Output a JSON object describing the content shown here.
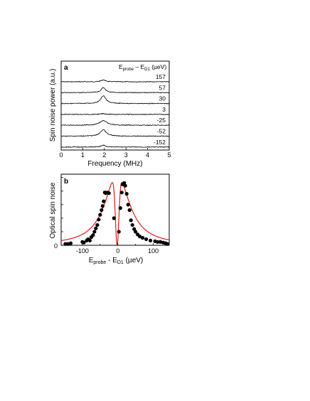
{
  "chart_data": [
    {
      "panel": "a",
      "type": "line",
      "xlabel": "Frequency (MHz)",
      "ylabel": "Spin noise power (a.u.)",
      "xlim": [
        0,
        5
      ],
      "xticks": [
        "0",
        "1",
        "2",
        "3",
        "4",
        "5"
      ],
      "legend_title": {
        "main": "E",
        "sub1": "probe",
        "mid": " – E",
        "sub2": "D1",
        "tail": " (µeV)"
      },
      "peak_center_mhz": 1.95,
      "series": [
        {
          "name": "157",
          "peak_height": 0.2,
          "peak_width_mhz": 0.12
        },
        {
          "name": "57",
          "peak_height": 0.55,
          "peak_width_mhz": 0.12
        },
        {
          "name": "30",
          "peak_height": 0.85,
          "peak_width_mhz": 0.14
        },
        {
          "name": "3",
          "peak_height": 0.08,
          "peak_width_mhz": 0.15
        },
        {
          "name": "-25",
          "peak_height": 0.5,
          "peak_width_mhz": 0.2
        },
        {
          "name": "-52",
          "peak_height": 0.7,
          "peak_width_mhz": 0.16
        },
        {
          "name": "-152",
          "peak_height": 0.2,
          "peak_width_mhz": 0.12
        }
      ],
      "color": "#000000"
    },
    {
      "panel": "b",
      "type": "scatter",
      "xlabel": {
        "main": "E",
        "sub1": "probe",
        "mid": " - E",
        "sub2": "D1",
        "tail": " (µeV)"
      },
      "ylabel": "Optical spin noise",
      "xlim": [
        -160,
        145
      ],
      "ylim": [
        0,
        1.05
      ],
      "xticks": [
        "-100",
        "0",
        "100"
      ],
      "yticks": [
        "0"
      ],
      "points": [
        [
          -148,
          0.02
        ],
        [
          -141,
          0.02
        ],
        [
          -133,
          0.03
        ],
        [
          -100,
          0.05
        ],
        [
          -96,
          0.04
        ],
        [
          -88,
          0.07
        ],
        [
          -84,
          0.09
        ],
        [
          -79,
          0.07
        ],
        [
          -75,
          0.12
        ],
        [
          -70,
          0.15
        ],
        [
          -66,
          0.2
        ],
        [
          -62,
          0.25
        ],
        [
          -58,
          0.3
        ],
        [
          -54,
          0.38
        ],
        [
          -50,
          0.45
        ],
        [
          -46,
          0.52
        ],
        [
          -43,
          0.58
        ],
        [
          -40,
          0.65
        ],
        [
          -37,
          0.78
        ],
        [
          -34,
          0.77
        ],
        [
          -30,
          0.78
        ],
        [
          -25,
          0.77
        ],
        [
          -11,
          0.4
        ],
        [
          3,
          0.2
        ],
        [
          7,
          0.55
        ],
        [
          11,
          0.78
        ],
        [
          13,
          0.9
        ],
        [
          18,
          0.92
        ],
        [
          21,
          0.88
        ],
        [
          25,
          0.76
        ],
        [
          29,
          0.6
        ],
        [
          33,
          0.52
        ],
        [
          37,
          0.37
        ],
        [
          41,
          0.3
        ],
        [
          46,
          0.24
        ],
        [
          50,
          0.2
        ],
        [
          56,
          0.16
        ],
        [
          62,
          0.13
        ],
        [
          70,
          0.11
        ],
        [
          80,
          0.09
        ],
        [
          92,
          0.07
        ],
        [
          105,
          0.06
        ],
        [
          112,
          0.05
        ],
        [
          120,
          0.05
        ],
        [
          128,
          0.04
        ],
        [
          135,
          0.03
        ],
        [
          140,
          0.02
        ]
      ],
      "fit": {
        "center": -2,
        "halfwidth": 42,
        "dip_width": 5
      },
      "point_color": "#000000",
      "fit_color": "#e8191c"
    }
  ]
}
